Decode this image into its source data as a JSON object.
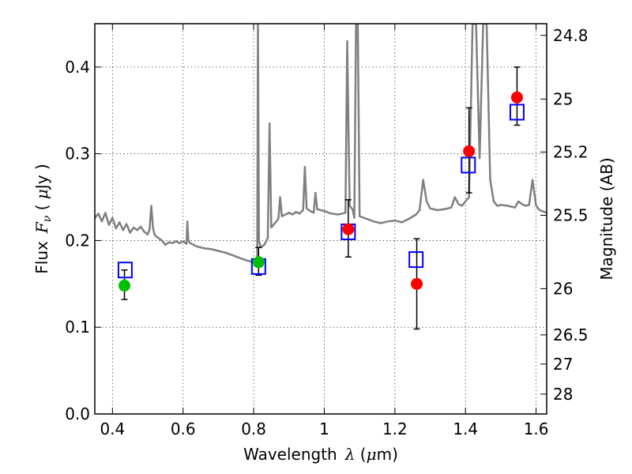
{
  "chart_data": {
    "type": "scatter",
    "xlabel_text": "Wavelength",
    "xlabel_symbol": "λ",
    "xlabel_unit_open": " (",
    "xlabel_unit_mu": "μ",
    "xlabel_unit_rest": "m)",
    "ylabel_left_text": "Flux",
    "ylabel_left_symbol": "F",
    "ylabel_left_sub": "ν",
    "ylabel_left_unit_open": " ( ",
    "ylabel_left_unit_mu": "μ",
    "ylabel_left_unit_rest": "Jy )",
    "ylabel_right": "Magnitude (AB)",
    "xlim": [
      0.35,
      1.63
    ],
    "ylim": [
      0.0,
      0.45
    ],
    "grid": true,
    "x_ticks": [
      0.4,
      0.6,
      0.8,
      1.0,
      1.2,
      1.4,
      1.6
    ],
    "x_tick_labels": [
      "0.4",
      "0.6",
      "0.8",
      "1",
      "1.2",
      "1.4",
      "1.6"
    ],
    "y_ticks": [
      0.0,
      0.1,
      0.2,
      0.3,
      0.4
    ],
    "y_tick_labels": [
      "0.0",
      "0.1",
      "0.2",
      "0.3",
      "0.4"
    ],
    "right_ticks": [
      {
        "label": "24.8",
        "flux": 0.4365
      },
      {
        "label": "25",
        "flux": 0.3631
      },
      {
        "label": "25.2",
        "flux": 0.302
      },
      {
        "label": "25.5",
        "flux": 0.2291
      },
      {
        "label": "26",
        "flux": 0.1445
      },
      {
        "label": "26.5",
        "flux": 0.0912
      },
      {
        "label": "27",
        "flux": 0.0575
      },
      {
        "label": "28",
        "flux": 0.0229
      }
    ],
    "series": [
      {
        "kind": "model_spectrum",
        "color": "#7f7f7f",
        "points": [
          [
            0.35,
            0.226
          ],
          [
            0.36,
            0.231
          ],
          [
            0.37,
            0.222
          ],
          [
            0.38,
            0.232
          ],
          [
            0.39,
            0.218
          ],
          [
            0.4,
            0.226
          ],
          [
            0.41,
            0.214
          ],
          [
            0.42,
            0.221
          ],
          [
            0.43,
            0.212
          ],
          [
            0.44,
            0.219
          ],
          [
            0.45,
            0.209
          ],
          [
            0.46,
            0.215
          ],
          [
            0.47,
            0.212
          ],
          [
            0.48,
            0.216
          ],
          [
            0.49,
            0.21
          ],
          [
            0.5,
            0.207
          ],
          [
            0.505,
            0.213
          ],
          [
            0.51,
            0.24
          ],
          [
            0.515,
            0.214
          ],
          [
            0.52,
            0.206
          ],
          [
            0.53,
            0.203
          ],
          [
            0.54,
            0.2
          ],
          [
            0.55,
            0.195
          ],
          [
            0.56,
            0.198
          ],
          [
            0.57,
            0.197
          ],
          [
            0.58,
            0.199
          ],
          [
            0.59,
            0.197
          ],
          [
            0.6,
            0.199
          ],
          [
            0.61,
            0.196
          ],
          [
            0.612,
            0.222
          ],
          [
            0.615,
            0.2
          ],
          [
            0.62,
            0.197
          ],
          [
            0.63,
            0.195
          ],
          [
            0.64,
            0.193
          ],
          [
            0.66,
            0.191
          ],
          [
            0.68,
            0.19
          ],
          [
            0.7,
            0.188
          ],
          [
            0.72,
            0.186
          ],
          [
            0.74,
            0.183
          ],
          [
            0.76,
            0.18
          ],
          [
            0.78,
            0.177
          ],
          [
            0.8,
            0.175
          ],
          [
            0.81,
            0.176
          ],
          [
            0.812,
            0.45
          ],
          [
            0.815,
            0.2
          ],
          [
            0.82,
            0.192
          ],
          [
            0.83,
            0.195
          ],
          [
            0.84,
            0.203
          ],
          [
            0.845,
            0.335
          ],
          [
            0.85,
            0.215
          ],
          [
            0.86,
            0.22
          ],
          [
            0.87,
            0.225
          ],
          [
            0.875,
            0.25
          ],
          [
            0.88,
            0.228
          ],
          [
            0.89,
            0.23
          ],
          [
            0.9,
            0.232
          ],
          [
            0.91,
            0.23
          ],
          [
            0.92,
            0.233
          ],
          [
            0.93,
            0.231
          ],
          [
            0.94,
            0.235
          ],
          [
            0.945,
            0.285
          ],
          [
            0.95,
            0.237
          ],
          [
            0.96,
            0.234
          ],
          [
            0.97,
            0.232
          ],
          [
            0.975,
            0.255
          ],
          [
            0.98,
            0.236
          ],
          [
            1.0,
            0.234
          ],
          [
            1.02,
            0.231
          ],
          [
            1.04,
            0.23
          ],
          [
            1.06,
            0.232
          ],
          [
            1.065,
            0.43
          ],
          [
            1.072,
            0.24
          ],
          [
            1.08,
            0.236
          ],
          [
            1.085,
            0.226
          ],
          [
            1.09,
            0.45
          ],
          [
            1.095,
            0.45
          ],
          [
            1.1,
            0.228
          ],
          [
            1.12,
            0.225
          ],
          [
            1.14,
            0.222
          ],
          [
            1.16,
            0.22
          ],
          [
            1.18,
            0.222
          ],
          [
            1.2,
            0.223
          ],
          [
            1.22,
            0.221
          ],
          [
            1.24,
            0.225
          ],
          [
            1.26,
            0.23
          ],
          [
            1.27,
            0.235
          ],
          [
            1.28,
            0.27
          ],
          [
            1.29,
            0.245
          ],
          [
            1.3,
            0.237
          ],
          [
            1.32,
            0.235
          ],
          [
            1.34,
            0.236
          ],
          [
            1.36,
            0.238
          ],
          [
            1.37,
            0.25
          ],
          [
            1.38,
            0.242
          ],
          [
            1.39,
            0.24
          ],
          [
            1.4,
            0.245
          ],
          [
            1.41,
            0.25
          ],
          [
            1.42,
            0.45
          ],
          [
            1.43,
            0.45
          ],
          [
            1.44,
            0.295
          ],
          [
            1.45,
            0.45
          ],
          [
            1.46,
            0.45
          ],
          [
            1.47,
            0.27
          ],
          [
            1.48,
            0.245
          ],
          [
            1.49,
            0.24
          ],
          [
            1.5,
            0.241
          ],
          [
            1.52,
            0.24
          ],
          [
            1.54,
            0.238
          ],
          [
            1.55,
            0.245
          ],
          [
            1.56,
            0.242
          ],
          [
            1.57,
            0.24
          ],
          [
            1.58,
            0.241
          ],
          [
            1.59,
            0.27
          ],
          [
            1.6,
            0.24
          ],
          [
            1.61,
            0.235
          ],
          [
            1.63,
            0.232
          ]
        ]
      },
      {
        "kind": "observed",
        "marker": "circle",
        "points": [
          {
            "x": 0.434,
            "y": 0.148,
            "err": [
              0.016,
              0.018
            ],
            "color": "#00bf00"
          },
          {
            "x": 0.814,
            "y": 0.175,
            "err": [
              0.015,
              0.017
            ],
            "color": "#00bf00"
          },
          {
            "x": 1.068,
            "y": 0.213,
            "err": [
              0.032,
              0.034
            ],
            "color": "#ff0000"
          },
          {
            "x": 1.262,
            "y": 0.15,
            "err": [
              0.052,
              0.052
            ],
            "color": "#ff0000"
          },
          {
            "x": 1.41,
            "y": 0.303,
            "err": [
              0.048,
              0.05
            ],
            "color": "#ff0000"
          },
          {
            "x": 1.546,
            "y": 0.365,
            "err": [
              0.032,
              0.035
            ],
            "color": "#ff0000"
          }
        ]
      },
      {
        "kind": "model_photometry",
        "marker": "square",
        "color": "#0000ff",
        "points": [
          {
            "x": 0.436,
            "y": 0.166
          },
          {
            "x": 0.814,
            "y": 0.17
          },
          {
            "x": 1.068,
            "y": 0.21
          },
          {
            "x": 1.26,
            "y": 0.178
          },
          {
            "x": 1.408,
            "y": 0.287
          },
          {
            "x": 1.546,
            "y": 0.348
          }
        ]
      }
    ]
  }
}
